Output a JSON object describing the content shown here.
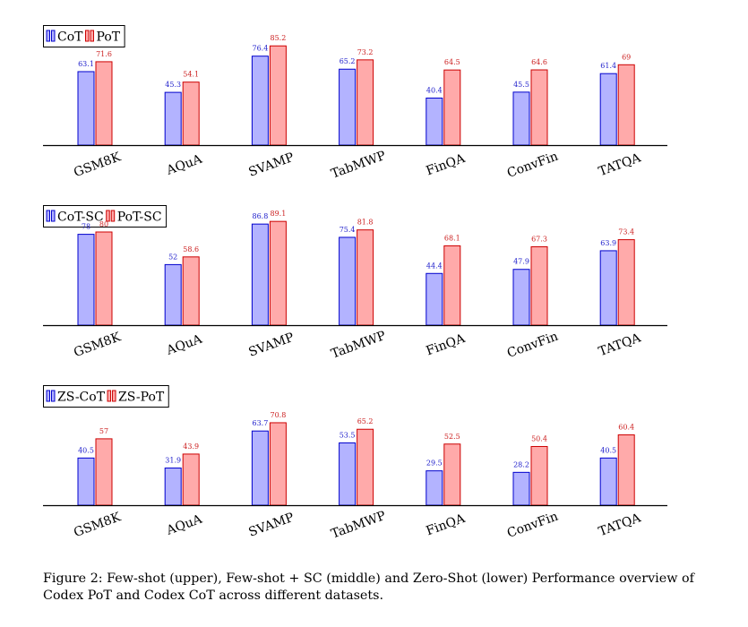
{
  "chart_data": [
    {
      "type": "bar",
      "categories": [
        "GSM8K",
        "AQuA",
        "SVAMP",
        "TabMWP",
        "FinQA",
        "ConvFin",
        "TATQA"
      ],
      "series": [
        {
          "name": "CoT",
          "values": [
            63.1,
            45.3,
            76.4,
            65.2,
            40.4,
            45.5,
            61.4
          ],
          "color": "#b3b3ff",
          "stroke": "#0000cc",
          "label_color": "#2222cc"
        },
        {
          "name": "PoT",
          "values": [
            71.6,
            54.1,
            85.2,
            73.2,
            64.5,
            64.6,
            69
          ],
          "color": "#ffaaaa",
          "stroke": "#cc0000",
          "label_color": "#cc2222"
        }
      ],
      "legend_position": "top-left"
    },
    {
      "type": "bar",
      "categories": [
        "GSM8K",
        "AQuA",
        "SVAMP",
        "TabMWP",
        "FinQA",
        "ConvFin",
        "TATQA"
      ],
      "series": [
        {
          "name": "CoT-SC",
          "values": [
            78,
            52,
            86.8,
            75.4,
            44.4,
            47.9,
            63.9
          ],
          "color": "#b3b3ff",
          "stroke": "#0000cc",
          "label_color": "#2222cc"
        },
        {
          "name": "PoT-SC",
          "values": [
            80,
            58.6,
            89.1,
            81.8,
            68.1,
            67.3,
            73.4
          ],
          "color": "#ffaaaa",
          "stroke": "#cc0000",
          "label_color": "#cc2222"
        }
      ],
      "legend_position": "top-left"
    },
    {
      "type": "bar",
      "categories": [
        "GSM8K",
        "AQuA",
        "SVAMP",
        "TabMWP",
        "FinQA",
        "ConvFin",
        "TATQA"
      ],
      "series": [
        {
          "name": "ZS-CoT",
          "values": [
            40.5,
            31.9,
            63.7,
            53.5,
            29.5,
            28.2,
            40.5
          ],
          "color": "#b3b3ff",
          "stroke": "#0000cc",
          "label_color": "#2222cc"
        },
        {
          "name": "ZS-PoT",
          "values": [
            57,
            43.9,
            70.8,
            65.2,
            52.5,
            50.4,
            60.4
          ],
          "color": "#ffaaaa",
          "stroke": "#cc0000",
          "label_color": "#cc2222"
        }
      ],
      "legend_position": "top-left"
    }
  ],
  "caption": "Figure 2: Few-shot (upper), Few-shot + SC (middle) and Zero-Shot (lower) Performance overview of Codex PoT and Codex CoT across different datasets."
}
